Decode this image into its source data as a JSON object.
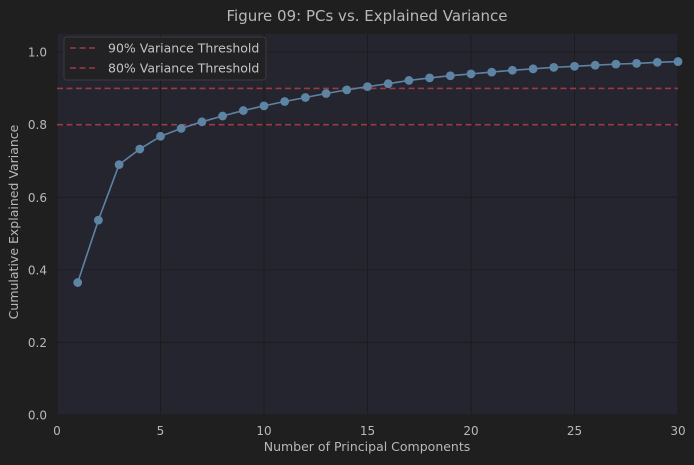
{
  "chart_data": {
    "type": "line",
    "title": "Figure 09: PCs vs. Explained Variance",
    "xlabel": "Number of Principal Components",
    "ylabel": "Cumulative Explained Variance",
    "xlim": [
      0,
      30
    ],
    "ylim": [
      0,
      1.05
    ],
    "xticks": [
      0,
      5,
      10,
      15,
      20,
      25,
      30
    ],
    "yticks": [
      0.0,
      0.2,
      0.4,
      0.6,
      0.8,
      1.0
    ],
    "xtick_labels": [
      "0",
      "5",
      "10",
      "15",
      "20",
      "25",
      "30"
    ],
    "ytick_labels": [
      "0.0",
      "0.2",
      "0.4",
      "0.6",
      "0.8",
      "1.0"
    ],
    "grid": true,
    "legend_position": "top-left",
    "series": [
      {
        "color": "#5d84a3",
        "x": [
          1,
          2,
          3,
          4,
          5,
          6,
          7,
          8,
          9,
          10,
          11,
          12,
          13,
          14,
          15,
          16,
          17,
          18,
          19,
          20,
          21,
          22,
          23,
          24,
          25,
          26,
          27,
          28,
          29,
          30
        ],
        "y": [
          0.365,
          0.537,
          0.69,
          0.733,
          0.768,
          0.79,
          0.808,
          0.824,
          0.839,
          0.852,
          0.864,
          0.875,
          0.886,
          0.896,
          0.905,
          0.913,
          0.922,
          0.929,
          0.935,
          0.94,
          0.945,
          0.95,
          0.954,
          0.958,
          0.961,
          0.964,
          0.967,
          0.969,
          0.972,
          0.974
        ]
      }
    ],
    "thresholds": [
      {
        "label": "90% Variance Threshold",
        "value": 0.9,
        "color": "#9c3a44"
      },
      {
        "label": "80% Variance Threshold",
        "value": 0.8,
        "color": "#9c3a44"
      }
    ]
  },
  "colors": {
    "background": "#1f1f1f",
    "plot_background": "#252530",
    "grid": "#1c1c1c",
    "text": "#b8b8b8"
  }
}
